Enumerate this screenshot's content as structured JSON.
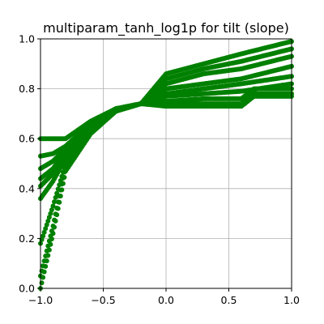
{
  "chart_data": {
    "type": "scatter",
    "title": "multiparam_tanh_log1p for tilt (slope)",
    "xlabel": "",
    "ylabel": "",
    "xlim": [
      -1.0,
      1.0
    ],
    "ylim": [
      0.0,
      1.0
    ],
    "grid": true,
    "marker_color": "#008000",
    "x_ticks": [
      -1.0,
      -0.5,
      0.0,
      0.5,
      1.0
    ],
    "x_tick_labels": [
      "−1.0",
      "−0.5",
      "0.0",
      "0.5",
      "1.0"
    ],
    "y_ticks": [
      0.0,
      0.2,
      0.4,
      0.6,
      0.8,
      1.0
    ],
    "y_tick_labels": [
      "0.0",
      "0.2",
      "0.4",
      "0.6",
      "0.8",
      "1.0"
    ],
    "series": [
      {
        "x": [
          -1.0,
          -0.9,
          -0.8,
          -0.6,
          -0.4,
          -0.2,
          0.0,
          0.3,
          0.6,
          1.0
        ],
        "y": [
          0.0,
          0.22,
          0.47,
          0.62,
          0.71,
          0.74,
          0.86,
          0.9,
          0.94,
          0.99
        ]
      },
      {
        "x": [
          -1.0,
          -0.9,
          -0.8,
          -0.6,
          -0.4,
          -0.2,
          0.0,
          0.3,
          0.6,
          1.0
        ],
        "y": [
          0.05,
          0.25,
          0.49,
          0.63,
          0.71,
          0.74,
          0.84,
          0.88,
          0.91,
          0.96
        ]
      },
      {
        "x": [
          -1.0,
          -0.9,
          -0.8,
          -0.6,
          -0.4,
          -0.2,
          0.0,
          0.3,
          0.6,
          1.0
        ],
        "y": [
          0.18,
          0.33,
          0.5,
          0.63,
          0.71,
          0.74,
          0.82,
          0.86,
          0.88,
          0.93
        ]
      },
      {
        "x": [
          -1.0,
          -0.9,
          -0.8,
          -0.6,
          -0.4,
          -0.2,
          0.0,
          0.3,
          0.6,
          1.0
        ],
        "y": [
          0.36,
          0.43,
          0.52,
          0.64,
          0.72,
          0.74,
          0.8,
          0.82,
          0.84,
          0.89
        ]
      },
      {
        "x": [
          -1.0,
          -0.9,
          -0.8,
          -0.6,
          -0.4,
          -0.2,
          0.0,
          0.3,
          0.6,
          1.0
        ],
        "y": [
          0.41,
          0.46,
          0.54,
          0.65,
          0.72,
          0.74,
          0.78,
          0.8,
          0.82,
          0.85
        ]
      },
      {
        "x": [
          -1.0,
          -0.9,
          -0.8,
          -0.6,
          -0.4,
          -0.2,
          0.0,
          0.3,
          0.6,
          1.0
        ],
        "y": [
          0.44,
          0.48,
          0.55,
          0.65,
          0.72,
          0.74,
          0.77,
          0.78,
          0.79,
          0.82
        ]
      },
      {
        "x": [
          -1.0,
          -0.9,
          -0.8,
          -0.6,
          -0.4,
          -0.2,
          0.0,
          0.3,
          0.6,
          0.7,
          1.0
        ],
        "y": [
          0.48,
          0.51,
          0.56,
          0.66,
          0.72,
          0.74,
          0.75,
          0.76,
          0.76,
          0.8,
          0.8
        ]
      },
      {
        "x": [
          -1.0,
          -0.9,
          -0.8,
          -0.6,
          -0.4,
          -0.2,
          0.0,
          0.3,
          0.6,
          0.7,
          1.0
        ],
        "y": [
          0.53,
          0.54,
          0.57,
          0.66,
          0.72,
          0.74,
          0.74,
          0.74,
          0.74,
          0.78,
          0.78
        ]
      },
      {
        "x": [
          -1.0,
          -0.9,
          -0.8,
          -0.6,
          -0.4,
          -0.2,
          0.0,
          0.3,
          0.6,
          0.7,
          1.0
        ],
        "y": [
          0.6,
          0.6,
          0.6,
          0.67,
          0.72,
          0.74,
          0.73,
          0.73,
          0.73,
          0.77,
          0.77
        ]
      }
    ]
  }
}
